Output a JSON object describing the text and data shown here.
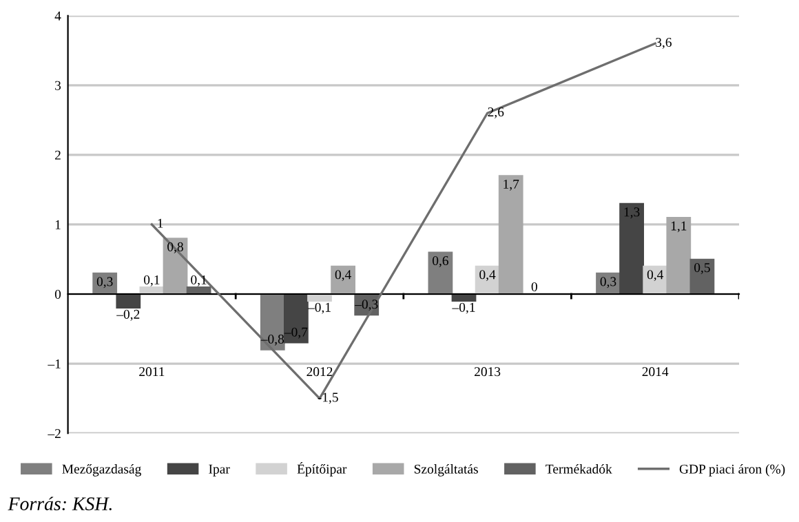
{
  "chart_data": {
    "type": "bar",
    "categories": [
      "2011",
      "2012",
      "2013",
      "2014"
    ],
    "series": [
      {
        "name": "Mezőgazdaság",
        "color": "#7f7f7f",
        "values": [
          0.3,
          -0.8,
          0.6,
          0.3
        ],
        "value_labels": [
          "0,3",
          "–0,8",
          "0,6",
          "0,3"
        ]
      },
      {
        "name": "Ipar",
        "color": "#454545",
        "values": [
          -0.2,
          -0.7,
          -0.1,
          1.3
        ],
        "value_labels": [
          "–0,2",
          "–0,7",
          "–0,1",
          "1,3"
        ]
      },
      {
        "name": "Építőipar",
        "color": "#d2d2d2",
        "values": [
          0.1,
          -0.1,
          0.4,
          0.4
        ],
        "value_labels": [
          "0,1",
          "–0,1",
          "0,4",
          "0,4"
        ]
      },
      {
        "name": "Szolgáltatás",
        "color": "#a8a8a8",
        "values": [
          0.8,
          0.4,
          1.7,
          1.1
        ],
        "value_labels": [
          "0,8",
          "0,4",
          "1,7",
          "1,1"
        ]
      },
      {
        "name": "Termékadók",
        "color": "#626262",
        "values": [
          0.1,
          -0.3,
          0,
          0.5
        ],
        "value_labels": [
          "0,1",
          "–0,3",
          "0",
          "0,5"
        ]
      },
      {
        "name": "GDP piaci áron (%)",
        "type": "line",
        "color": "#6e6e6e",
        "values": [
          1,
          -1.5,
          2.6,
          3.6
        ],
        "value_labels": [
          "1",
          "-1,5",
          "2,6",
          "3,6"
        ]
      }
    ],
    "ylim": [
      -2,
      4
    ],
    "yticks": [
      {
        "value": -2,
        "label": "–2"
      },
      {
        "value": -1,
        "label": "–1"
      },
      0,
      1,
      2,
      3,
      4
    ],
    "grid": "y",
    "legend": "bottom",
    "marker": "none",
    "annotations": [
      "Forrás: KSH."
    ]
  }
}
